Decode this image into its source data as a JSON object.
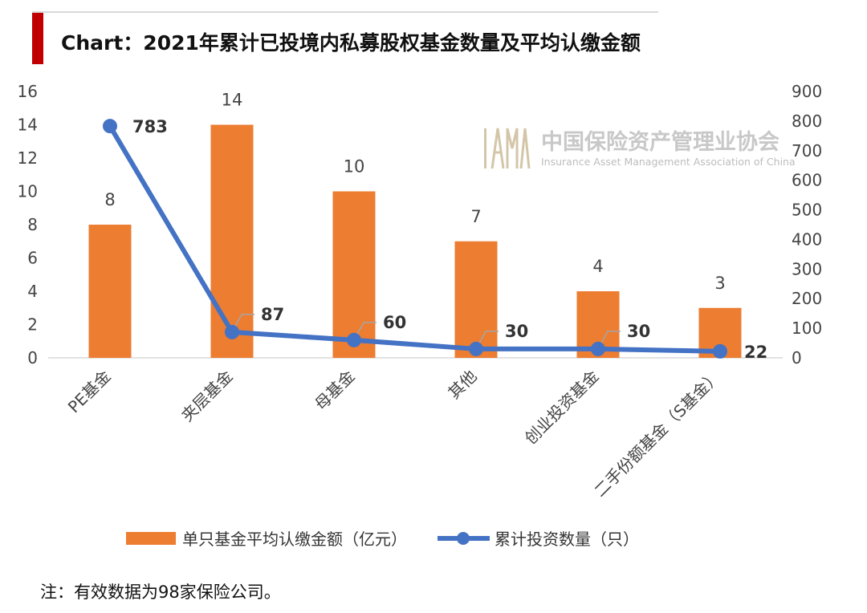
{
  "title": "Chart：2021年累计已投境内私募股权基金数量及平均认缴金额",
  "note": "注：有效数据为98家保险公司。",
  "watermark": {
    "logo": "IAMAC",
    "name_cn": "中国保险资产管理业协会",
    "name_en": "Insurance Asset Management Association of China"
  },
  "colors": {
    "bar": "#ED7D31",
    "line": "#4472C4",
    "title_accent": "#C00000"
  },
  "chart_data": {
    "type": "bar",
    "categories": [
      "PE基金",
      "夹层基金",
      "母基金",
      "其他",
      "创业投资基金",
      "二手份额基金（S基金）"
    ],
    "series": [
      {
        "name": "单只基金平均认缴金额（亿元）",
        "type": "bar",
        "axis": "left",
        "values": [
          8,
          14,
          10,
          7,
          4,
          3
        ],
        "labels": [
          "8",
          "14",
          "10",
          "7",
          "4",
          "3"
        ]
      },
      {
        "name": "累计投资数量（只）",
        "type": "line",
        "axis": "right",
        "values": [
          783,
          87,
          60,
          30,
          30,
          22
        ],
        "labels": [
          "783",
          "87",
          "60",
          "30",
          "30",
          "22"
        ]
      }
    ],
    "y_left": {
      "min": 0,
      "max": 16,
      "ticks": [
        "0",
        "2",
        "4",
        "6",
        "8",
        "10",
        "12",
        "14",
        "16"
      ]
    },
    "y_right": {
      "min": 0,
      "max": 900,
      "ticks": [
        "0",
        "100",
        "200",
        "300",
        "400",
        "500",
        "600",
        "700",
        "800",
        "900"
      ]
    },
    "grid": false,
    "legend": "bottom"
  }
}
